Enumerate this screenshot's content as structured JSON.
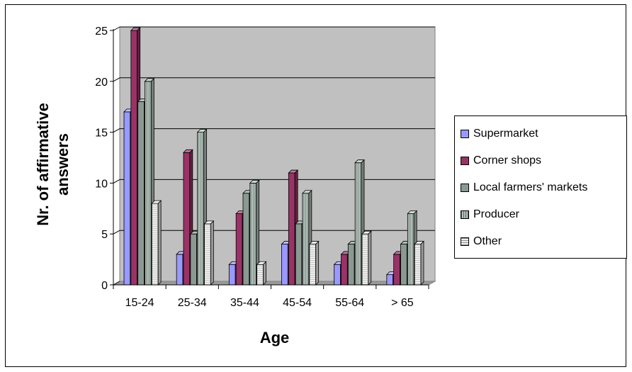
{
  "chart_data": {
    "type": "bar",
    "xlabel": "Age",
    "ylabel": "Nr. of affirmative answers",
    "ylim": [
      0,
      25
    ],
    "yticks": [
      0,
      5,
      10,
      15,
      20,
      25
    ],
    "grid": true,
    "legend_position": "right",
    "categories": [
      "15-24",
      "25-34",
      "35-44",
      "45-54",
      "55-64",
      "> 65"
    ],
    "series": [
      {
        "name": "Supermarket",
        "values": [
          17,
          3,
          2,
          4,
          2,
          1
        ],
        "color": "#9999ff"
      },
      {
        "name": "Corner shops",
        "values": [
          25,
          13,
          7,
          11,
          3,
          3
        ],
        "color": "#993366"
      },
      {
        "name": "Local farmers' markets",
        "values": [
          18,
          5,
          9,
          6,
          4,
          4
        ],
        "color": "#8a9a92"
      },
      {
        "name": "Producer",
        "values": [
          20,
          15,
          10,
          9,
          12,
          7
        ],
        "color": "#b4c4bc"
      },
      {
        "name": "Other",
        "values": [
          8,
          6,
          2,
          4,
          5,
          4
        ],
        "color": "#eeeeee"
      }
    ]
  }
}
